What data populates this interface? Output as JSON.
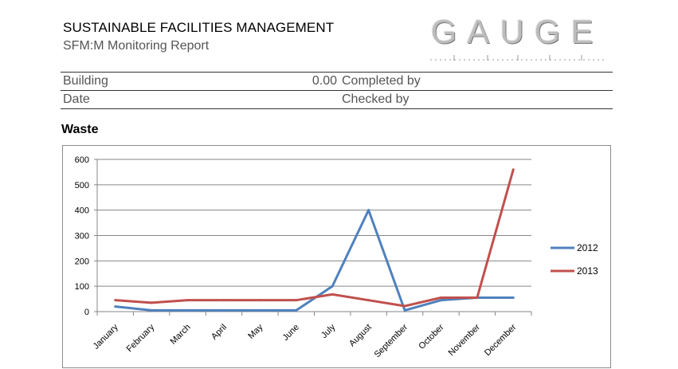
{
  "header": {
    "title": "SUSTAINABLE FACILITIES MANAGEMENT",
    "subtitle": "SFM:M Monitoring  Report",
    "logo_text": "GAUGE"
  },
  "info": {
    "building_label": "Building",
    "building_value": "0.00",
    "completed_by_label": "Completed by",
    "date_label": "Date",
    "checked_by_label": "Checked by"
  },
  "section_title": "Waste",
  "colors": {
    "series_2012": "#4f81bd",
    "series_2013": "#c0504d",
    "grid": "#868686"
  },
  "chart_data": {
    "type": "line",
    "title": "",
    "xlabel": "",
    "ylabel": "",
    "ylim": [
      0,
      600
    ],
    "yticks": [
      0,
      100,
      200,
      300,
      400,
      500,
      600
    ],
    "grid": true,
    "legend": "right",
    "categories": [
      "January",
      "February",
      "March",
      "April",
      "May",
      "June",
      "July",
      "August",
      "September",
      "October",
      "November",
      "December"
    ],
    "series": [
      {
        "name": "2012",
        "color": "#4f81bd",
        "values": [
          20,
          5,
          5,
          5,
          5,
          5,
          100,
          400,
          5,
          45,
          55,
          55
        ]
      },
      {
        "name": "2013",
        "color": "#c0504d",
        "values": [
          45,
          35,
          45,
          45,
          45,
          45,
          68,
          45,
          22,
          55,
          55,
          560
        ]
      }
    ]
  }
}
